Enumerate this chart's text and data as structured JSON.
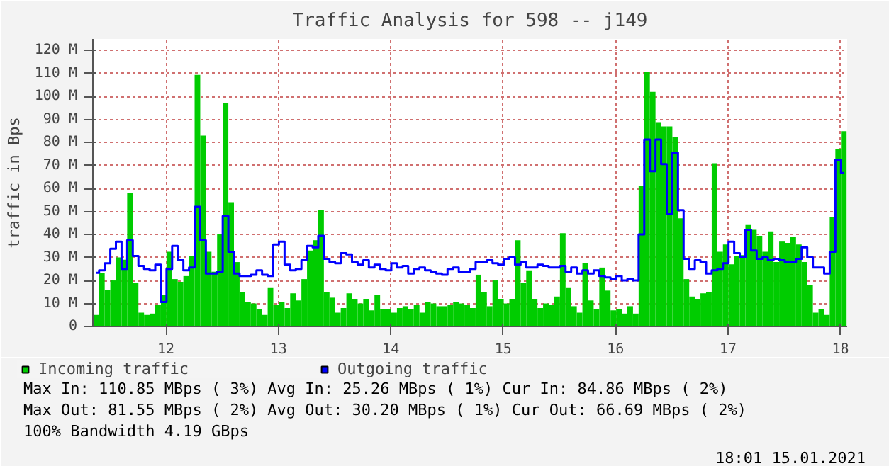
{
  "chart_data": {
    "type": "bar",
    "title": "Traffic Analysis for 598 -- j149",
    "ylabel": "traffic in Bps",
    "x": [
      11.38,
      11.43,
      11.48,
      11.53,
      11.58,
      11.63,
      11.68,
      11.73,
      11.78,
      11.83,
      11.88,
      11.93,
      11.98,
      12.03,
      12.08,
      12.13,
      12.18,
      12.23,
      12.28,
      12.33,
      12.38,
      12.43,
      12.48,
      12.53,
      12.58,
      12.63,
      12.68,
      12.73,
      12.78,
      12.83,
      12.88,
      12.93,
      12.98,
      13.03,
      13.08,
      13.13,
      13.18,
      13.23,
      13.28,
      13.33,
      13.38,
      13.43,
      13.48,
      13.53,
      13.58,
      13.63,
      13.68,
      13.73,
      13.78,
      13.83,
      13.88,
      13.93,
      13.98,
      14.03,
      14.08,
      14.13,
      14.18,
      14.23,
      14.28,
      14.33,
      14.38,
      14.43,
      14.48,
      14.53,
      14.58,
      14.63,
      14.68,
      14.73,
      14.78,
      14.83,
      14.88,
      14.93,
      14.98,
      15.03,
      15.08,
      15.13,
      15.18,
      15.23,
      15.28,
      15.33,
      15.38,
      15.43,
      15.48,
      15.53,
      15.58,
      15.63,
      15.68,
      15.73,
      15.78,
      15.83,
      15.88,
      15.93,
      15.98,
      16.03,
      16.08,
      16.13,
      16.18,
      16.23,
      16.28,
      16.33,
      16.38,
      16.43,
      16.48,
      16.53,
      16.58,
      16.63,
      16.68,
      16.73,
      16.78,
      16.83,
      16.88,
      16.93,
      16.98,
      17.03,
      17.08,
      17.13,
      17.18,
      17.23,
      17.28,
      17.33,
      17.38,
      17.43,
      17.48,
      17.53,
      17.58,
      17.63,
      17.68,
      17.73,
      17.78,
      17.83,
      17.88,
      17.93,
      17.98,
      18.03
    ],
    "series": [
      {
        "name": "Incoming traffic",
        "color": "#00cc00",
        "values": [
          5,
          23.3,
          16,
          20,
          30,
          29,
          58,
          19,
          6,
          5,
          5.6,
          9.4,
          13.8,
          32.5,
          20.6,
          19.4,
          21.9,
          30.6,
          109.4,
          83,
          32.5,
          23.8,
          40,
          97,
          54,
          28,
          15,
          10.6,
          10,
          7.5,
          5,
          17,
          9.4,
          10.6,
          8,
          14.4,
          11.3,
          20.6,
          33,
          37.5,
          50.6,
          15,
          12.5,
          6,
          8,
          14.4,
          12,
          10,
          12,
          7,
          13.8,
          7.5,
          7.5,
          6,
          8,
          8.8,
          7.5,
          9.4,
          6,
          10.6,
          10,
          8.8,
          8.8,
          9.4,
          10.6,
          10,
          9.4,
          8,
          22.5,
          15,
          8.8,
          20,
          12,
          10,
          12,
          37.5,
          18.8,
          24.4,
          12,
          8,
          10,
          9.4,
          13,
          40.6,
          17,
          8.8,
          6,
          27.5,
          11.3,
          7.5,
          25.6,
          15.6,
          7,
          7.5,
          5.6,
          8.8,
          5.6,
          61,
          110.8,
          102,
          88.8,
          87,
          87,
          82.5,
          47,
          20.6,
          13,
          12,
          14.4,
          15,
          71,
          32.5,
          35.6,
          27,
          30.6,
          31,
          44.4,
          42,
          39.4,
          32.5,
          41.3,
          28,
          36.9,
          36.3,
          38.8,
          35.6,
          28,
          18,
          6,
          7.5,
          5,
          47.5,
          77,
          84.9
        ]
      },
      {
        "name": "Outgoing traffic",
        "type": "step",
        "color": "#0000ff",
        "values": [
          23.3,
          24.4,
          27.5,
          33.8,
          36.9,
          25,
          37.5,
          30.6,
          26.3,
          25,
          24.4,
          26.9,
          10.6,
          25,
          35,
          28.8,
          24.4,
          25.6,
          52,
          37.5,
          23,
          23,
          23.8,
          48,
          32.5,
          23,
          21.9,
          21.9,
          22.5,
          24.4,
          22.5,
          21.9,
          35.6,
          36.9,
          26.9,
          24.4,
          25,
          28.8,
          35,
          34.4,
          39.4,
          29.4,
          28,
          27.5,
          31.9,
          31.3,
          28,
          26.9,
          28.8,
          25.6,
          26.9,
          25,
          24.4,
          27.5,
          25.6,
          26.3,
          23,
          25,
          25.6,
          24.4,
          23.8,
          23,
          22.5,
          25,
          25.6,
          23.8,
          23.8,
          25,
          28,
          28,
          28.8,
          27.5,
          26.9,
          29.4,
          30,
          26.9,
          28,
          25.6,
          25.6,
          26.9,
          26.3,
          25.6,
          25.6,
          26.3,
          23.8,
          25.6,
          23,
          24.4,
          23,
          24.4,
          21.9,
          21.3,
          20.6,
          21.9,
          20,
          20.6,
          20,
          40,
          81.3,
          67.5,
          81.3,
          70.6,
          48.8,
          75.6,
          50.6,
          29.4,
          25,
          28.8,
          28,
          23,
          24.4,
          25,
          27.5,
          36.9,
          31.9,
          30,
          42,
          33,
          29.4,
          30,
          28.8,
          29.4,
          28.8,
          28,
          28,
          29.4,
          34.4,
          30,
          25.6,
          25.6,
          23,
          32.5,
          72.5,
          66.7
        ]
      }
    ],
    "xlim": [
      11.35,
      18.06
    ],
    "xticks": [
      12,
      13,
      14,
      15,
      16,
      17,
      18
    ],
    "ylim": [
      0,
      125
    ],
    "yticks": [
      0,
      {
        "value": 10,
        "label": "10 M"
      },
      {
        "value": 20,
        "label": "20 M"
      },
      {
        "value": 30,
        "label": "30 M"
      },
      {
        "value": 40,
        "label": "40 M"
      },
      {
        "value": 50,
        "label": "50 M"
      },
      {
        "value": 60,
        "label": "60 M"
      },
      {
        "value": 70,
        "label": "70 M"
      },
      {
        "value": 80,
        "label": "80 M"
      },
      {
        "value": 90,
        "label": "90 M"
      },
      {
        "value": 100,
        "label": "100 M"
      },
      {
        "value": 110,
        "label": "110 M"
      },
      {
        "value": 120,
        "label": "120 M"
      }
    ],
    "grid": true,
    "legend": "bottom",
    "annotations": [
      "Max In: 110.85 MBps ( 3%)  Avg In:  25.26 MBps ( 1%)  Cur In:  84.86 MBps ( 2%)",
      "Max Out: 81.55 MBps ( 2%)  Avg Out: 30.20 MBps ( 1%)  Cur Out: 66.69 MBps ( 2%)",
      "100% Bandwidth 4.19 GBps",
      "18:01 15.01.2021"
    ]
  }
}
